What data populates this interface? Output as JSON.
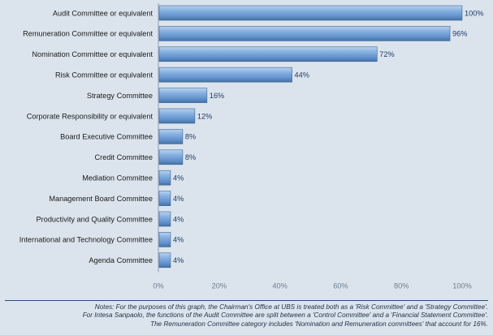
{
  "chart_data": {
    "type": "bar",
    "orientation": "horizontal",
    "categories": [
      "Audit Committee or equivalent",
      "Remuneration Committee or equivalent",
      "Nomination Committee or equivalent",
      "Risk Committee or equivalent",
      "Strategy Committee",
      "Corporate Responsibility or equivalent",
      "Board Executive Committee",
      "Credit Committee",
      "Mediation Committee",
      "Management Board Committee",
      "Productivity and Quality Committee",
      "International and Technology Committee",
      "Agenda Committee"
    ],
    "values": [
      100,
      96,
      72,
      44,
      16,
      12,
      8,
      8,
      4,
      4,
      4,
      4,
      4
    ],
    "data_labels": [
      "100%",
      "96%",
      "72%",
      "44%",
      "16%",
      "12%",
      "8%",
      "8%",
      "4%",
      "4%",
      "4%",
      "4%",
      "4%"
    ],
    "xlim": [
      0,
      100
    ],
    "x_ticks": [
      0,
      20,
      40,
      60,
      80,
      100
    ],
    "x_tick_labels": [
      "0%",
      "20%",
      "40%",
      "60%",
      "80%",
      "100%"
    ],
    "grid": false,
    "bar_color": "#6f9fd6",
    "title": "",
    "xlabel": "",
    "ylabel": ""
  },
  "notes": [
    "Notes: For the purposes of this graph, the Chairman's Office at UBS is treated both as a 'Risk Committee' and a 'Strategy Committee'.",
    "For Intesa Sanpaolo, the functions of the Audit Committee are split between a 'Control Committee' and a 'Financial Statement Committee'.",
    "The Remuneration Committee category includes 'Nomination and Remuneration committees' that account for 16%."
  ]
}
